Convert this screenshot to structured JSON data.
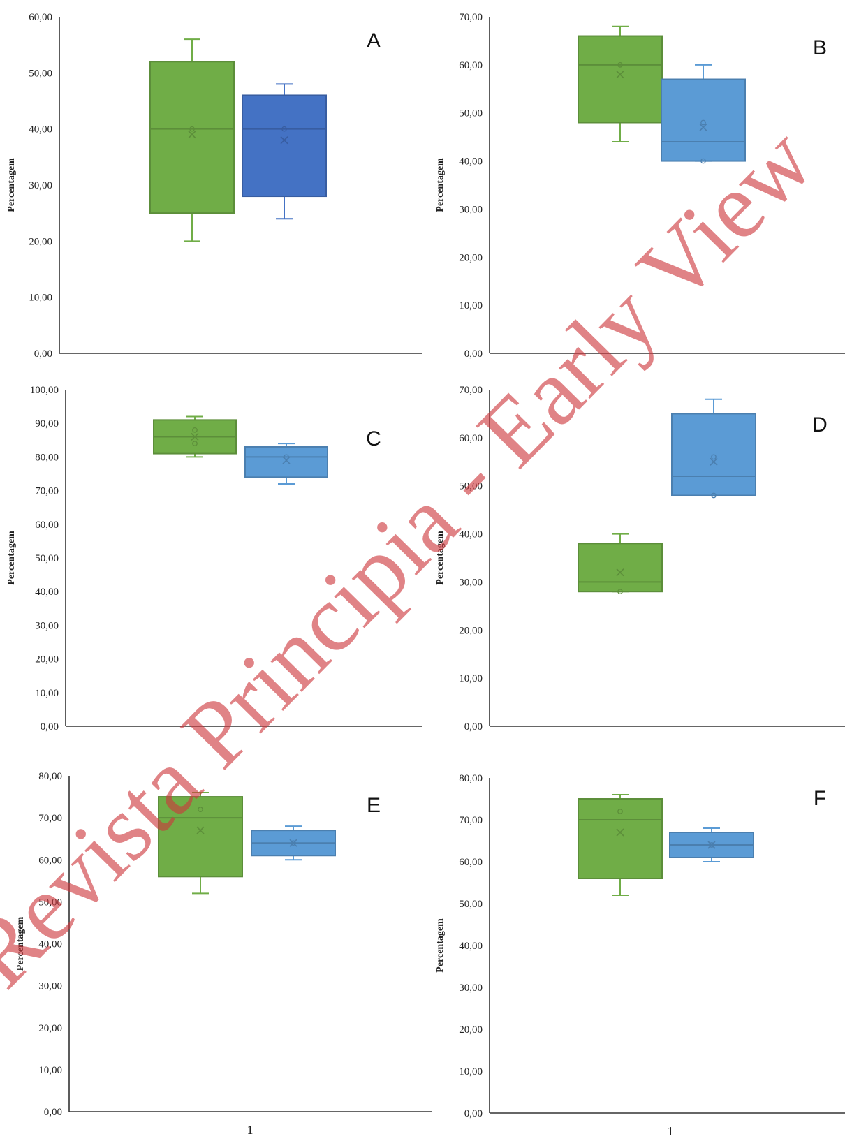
{
  "chart_data": [
    {
      "type": "boxplot",
      "panel": "A",
      "ylabel": "Percentagem",
      "ylim": [
        0,
        60
      ],
      "yticks": [
        "0,00",
        "10,00",
        "20,00",
        "30,00",
        "40,00",
        "50,00",
        "60,00"
      ],
      "xtick": "",
      "series": [
        {
          "color": "#70ad47",
          "min": 20,
          "q1": 25,
          "median": 40,
          "q3": 52,
          "max": 56,
          "mean": 39,
          "points": [
            40
          ]
        },
        {
          "color": "#4472c4",
          "min": 24,
          "q1": 28,
          "median": 40,
          "q3": 46,
          "max": 48,
          "mean": 38,
          "points": [
            40
          ]
        }
      ]
    },
    {
      "type": "boxplot",
      "panel": "B",
      "ylabel": "Percentagem",
      "ylim": [
        0,
        70
      ],
      "yticks": [
        "0,00",
        "10,00",
        "20,00",
        "30,00",
        "40,00",
        "50,00",
        "60,00",
        "70,00"
      ],
      "xtick": "",
      "series": [
        {
          "color": "#70ad47",
          "min": 44,
          "q1": 48,
          "median": 60,
          "q3": 66,
          "max": 68,
          "mean": 58,
          "points": [
            60
          ]
        },
        {
          "color": "#5b9bd5",
          "min": 40,
          "q1": 40,
          "median": 44,
          "q3": 57,
          "max": 60,
          "mean": 47,
          "points": [
            48,
            40
          ]
        }
      ]
    },
    {
      "type": "boxplot",
      "panel": "C",
      "ylabel": "Percentagem",
      "ylim": [
        0,
        100
      ],
      "yticks": [
        "0,00",
        "10,00",
        "20,00",
        "30,00",
        "40,00",
        "50,00",
        "60,00",
        "70,00",
        "80,00",
        "90,00",
        "100,00"
      ],
      "xtick": "",
      "series": [
        {
          "color": "#70ad47",
          "min": 80,
          "q1": 81,
          "median": 86,
          "q3": 91,
          "max": 92,
          "mean": 86,
          "points": [
            88,
            84
          ]
        },
        {
          "color": "#5b9bd5",
          "min": 72,
          "q1": 74,
          "median": 80,
          "q3": 83,
          "max": 84,
          "mean": 79,
          "points": [
            80
          ]
        }
      ]
    },
    {
      "type": "boxplot",
      "panel": "D",
      "ylabel": "Percentagem",
      "ylim": [
        0,
        70
      ],
      "yticks": [
        "0,00",
        "10,00",
        "20,00",
        "30,00",
        "40,00",
        "50,00",
        "60,00",
        "70,00"
      ],
      "xtick": "",
      "series": [
        {
          "color": "#70ad47",
          "min": 28,
          "q1": 28,
          "median": 30,
          "q3": 38,
          "max": 40,
          "mean": 32,
          "points": [
            28
          ]
        },
        {
          "color": "#5b9bd5",
          "min": 48,
          "q1": 48,
          "median": 52,
          "q3": 65,
          "max": 68,
          "mean": 55,
          "points": [
            56,
            48
          ]
        }
      ]
    },
    {
      "type": "boxplot",
      "panel": "E",
      "ylabel": "Percentagem",
      "ylim": [
        0,
        80
      ],
      "yticks": [
        "0,00",
        "10,00",
        "20,00",
        "30,00",
        "40,00",
        "50,00",
        "60,00",
        "70,00",
        "80,00"
      ],
      "xtick": "1",
      "series": [
        {
          "color": "#70ad47",
          "min": 52,
          "q1": 56,
          "median": 70,
          "q3": 75,
          "max": 76,
          "mean": 67,
          "points": [
            72
          ]
        },
        {
          "color": "#5b9bd5",
          "min": 60,
          "q1": 61,
          "median": 64,
          "q3": 67,
          "max": 68,
          "mean": 64,
          "points": [
            64
          ]
        }
      ]
    },
    {
      "type": "boxplot",
      "panel": "F",
      "ylabel": "Percentagem",
      "ylim": [
        0,
        80
      ],
      "yticks": [
        "0,00",
        "10,00",
        "20,00",
        "30,00",
        "40,00",
        "50,00",
        "60,00",
        "70,00",
        "80,00"
      ],
      "xtick": "1",
      "series": [
        {
          "color": "#70ad47",
          "min": 52,
          "q1": 56,
          "median": 70,
          "q3": 75,
          "max": 76,
          "mean": 67,
          "points": [
            72
          ]
        },
        {
          "color": "#5b9bd5",
          "min": 60,
          "q1": 61,
          "median": 64,
          "q3": 67,
          "max": 68,
          "mean": 64,
          "points": [
            64
          ]
        }
      ]
    }
  ],
  "watermark": "Revista Principia - Early View"
}
